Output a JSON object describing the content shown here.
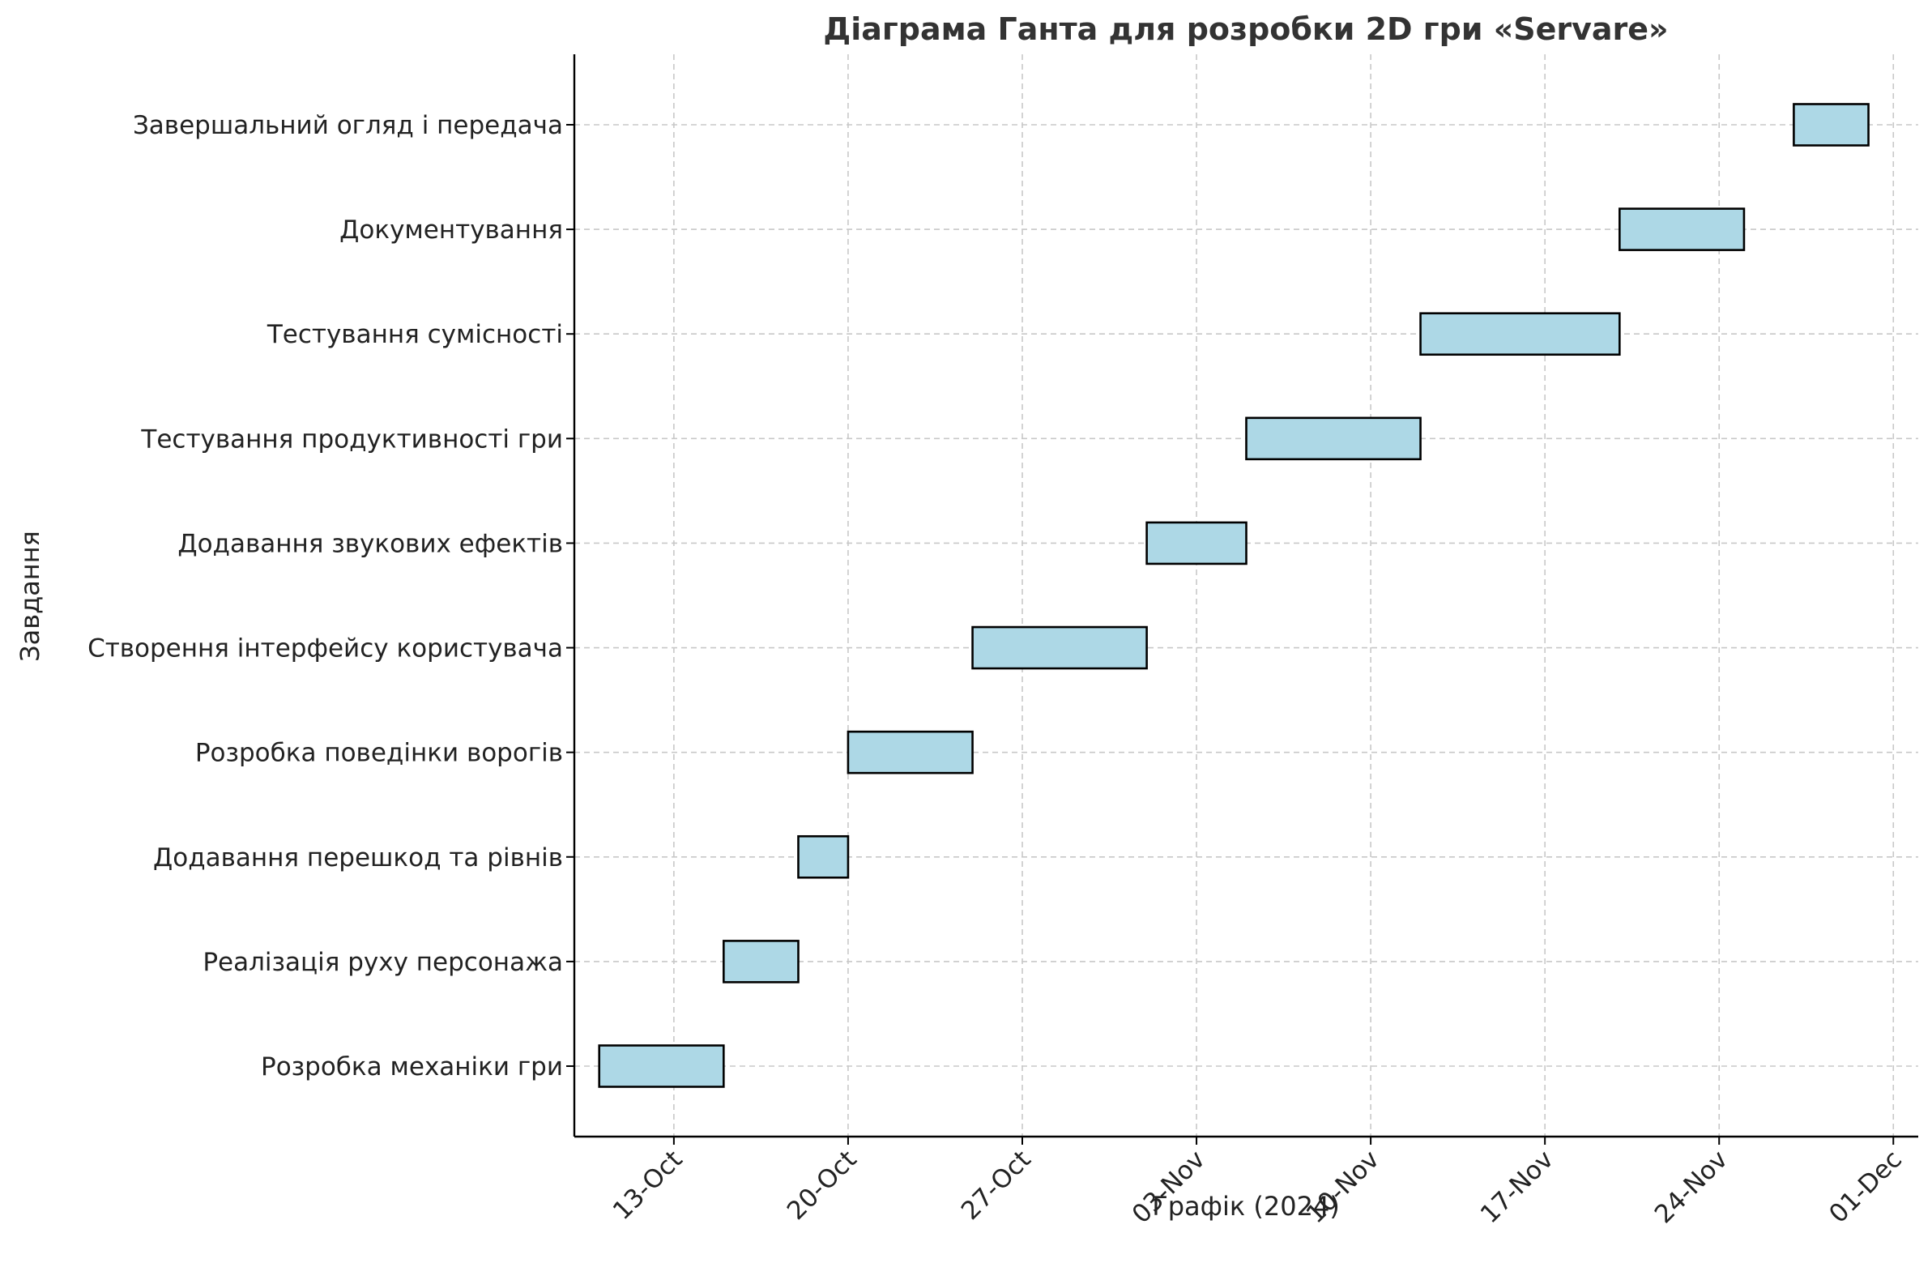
{
  "chart_data": {
    "type": "gantt",
    "title": "Діаграма Ганта для розробки 2D гри «Servare»",
    "xlabel": "Графік (2024)",
    "ylabel": "Завдання",
    "grid": true,
    "bar_color": "#add8e6",
    "edge_color": "#000000",
    "xlim": [
      "2024-10-09",
      "2024-12-02"
    ],
    "x_ticks": [
      {
        "date": "2024-10-13",
        "label": "13-Oct"
      },
      {
        "date": "2024-10-20",
        "label": "20-Oct"
      },
      {
        "date": "2024-10-27",
        "label": "27-Oct"
      },
      {
        "date": "2024-11-03",
        "label": "03-Nov"
      },
      {
        "date": "2024-11-10",
        "label": "10-Nov"
      },
      {
        "date": "2024-11-17",
        "label": "17-Nov"
      },
      {
        "date": "2024-11-24",
        "label": "24-Nov"
      },
      {
        "date": "2024-12-01",
        "label": "01-Dec"
      }
    ],
    "tasks": [
      {
        "name": "Розробка механіки гри",
        "start": "2024-10-10",
        "end": "2024-10-15"
      },
      {
        "name": "Реалізація руху персонажа",
        "start": "2024-10-15",
        "end": "2024-10-18"
      },
      {
        "name": "Додавання перешкод та рівнів",
        "start": "2024-10-18",
        "end": "2024-10-20"
      },
      {
        "name": "Розробка поведінки ворогів",
        "start": "2024-10-20",
        "end": "2024-10-25"
      },
      {
        "name": "Створення інтерфейсу користувача",
        "start": "2024-10-25",
        "end": "2024-11-01"
      },
      {
        "name": "Додавання звукових ефектів",
        "start": "2024-11-01",
        "end": "2024-11-05"
      },
      {
        "name": "Тестування продуктивності гри",
        "start": "2024-11-05",
        "end": "2024-11-12"
      },
      {
        "name": "Тестування сумісності",
        "start": "2024-11-12",
        "end": "2024-11-20"
      },
      {
        "name": "Документування",
        "start": "2024-11-20",
        "end": "2024-11-25"
      },
      {
        "name": "Завершальний огляд і передача",
        "start": "2024-11-27",
        "end": "2024-11-30"
      }
    ]
  }
}
